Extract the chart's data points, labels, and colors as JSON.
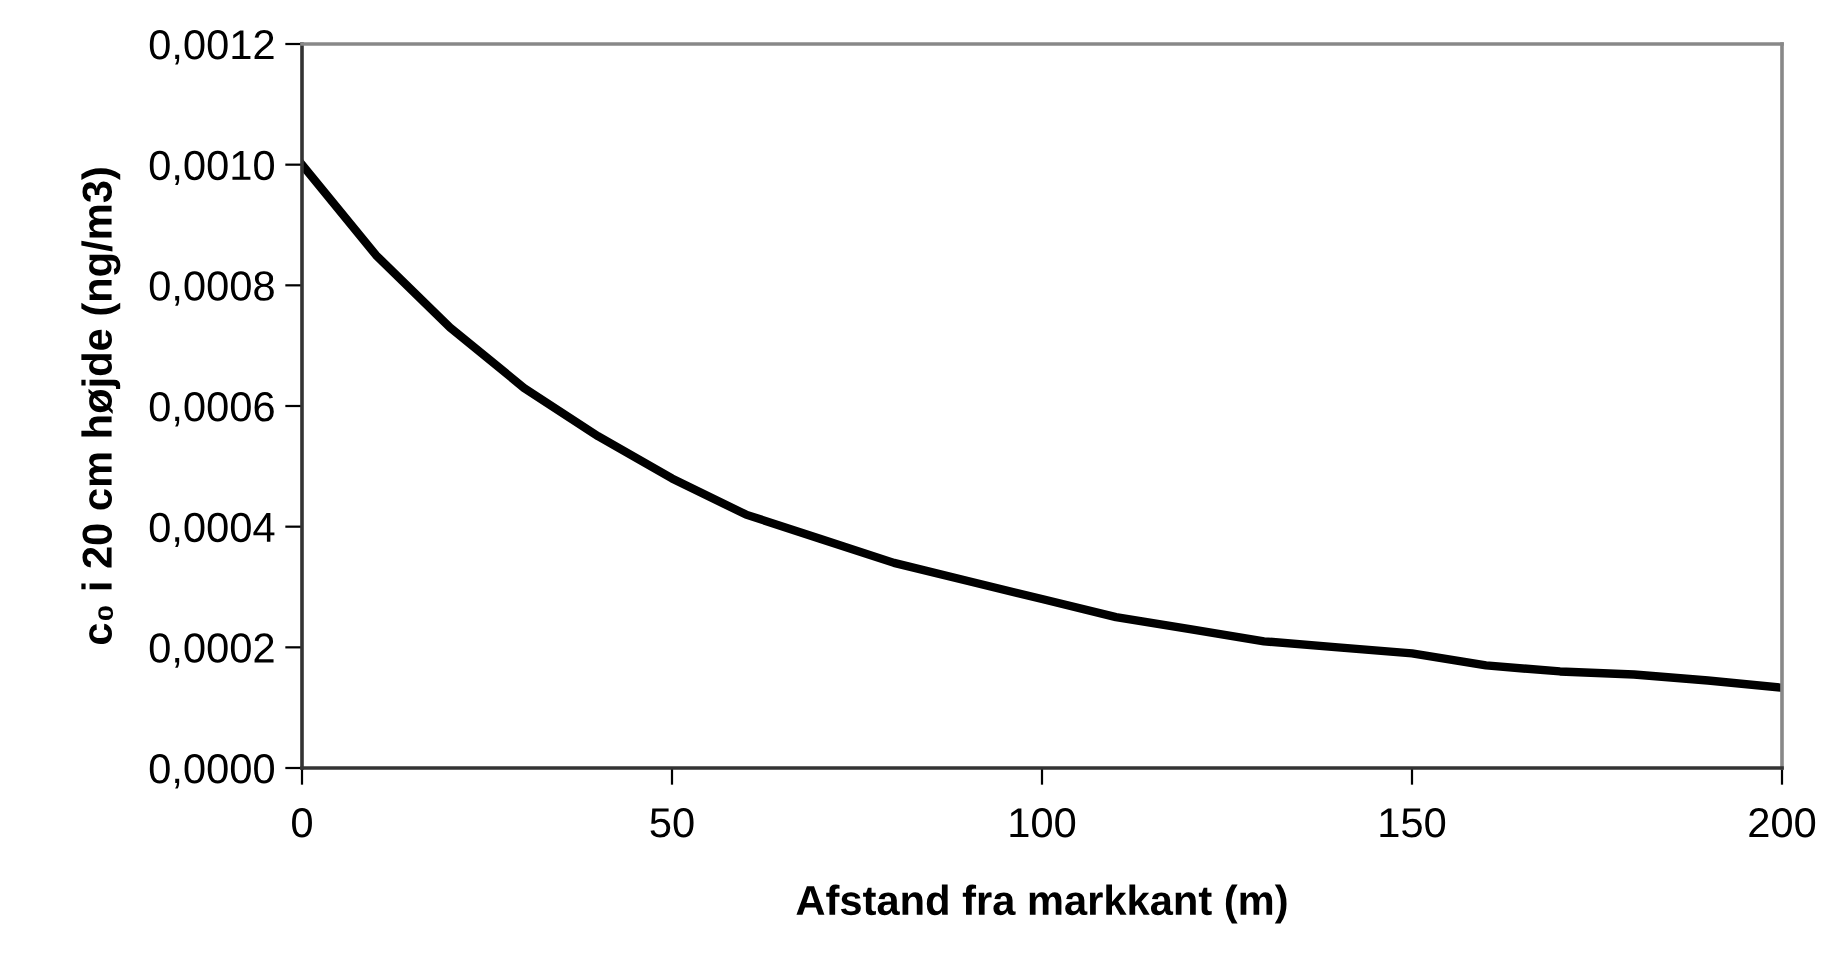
{
  "chart_data": {
    "type": "line",
    "xlabel": "Afstand fra markkant (m)",
    "ylabel": "c₀ i 20 cm højde (ng/m3)",
    "x": [
      0,
      10,
      20,
      30,
      40,
      50,
      60,
      70,
      80,
      90,
      100,
      110,
      120,
      130,
      140,
      150,
      160,
      170,
      180,
      190,
      200
    ],
    "series": [
      {
        "color": "#000000",
        "values": [
          0.001,
          0.00085,
          0.00073,
          0.00063,
          0.00055,
          0.00048,
          0.00042,
          0.00038,
          0.00034,
          0.00031,
          0.00028,
          0.00025,
          0.00023,
          0.00021,
          0.0002,
          0.00019,
          0.00017,
          0.00016,
          0.000155,
          0.000145,
          0.000133
        ]
      }
    ],
    "xlim": [
      0,
      200
    ],
    "xticks": [
      0,
      50,
      100,
      150,
      200
    ],
    "ylim": [
      0,
      0.0012
    ],
    "yticks": [
      {
        "value": 0,
        "label": "0,0000"
      },
      {
        "value": 0.0002,
        "label": "0,0002"
      },
      {
        "value": 0.0004,
        "label": "0,0004"
      },
      {
        "value": 0.0006,
        "label": "0,0006"
      },
      {
        "value": 0.0008,
        "label": "0,0008"
      },
      {
        "value": 0.001,
        "label": "0,0010"
      },
      {
        "value": 0.0012,
        "label": "0,0012"
      }
    ],
    "grid": false,
    "marker": "none",
    "line_style": "solid"
  }
}
